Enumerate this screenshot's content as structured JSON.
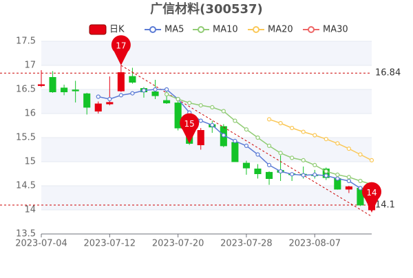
{
  "chart_data": {
    "type": "candlestick",
    "title": "广信材料(300537)",
    "categories": [
      "2023-07-04",
      null,
      null,
      null,
      null,
      null,
      "2023-07-12",
      null,
      null,
      null,
      null,
      null,
      "2023-07-20",
      null,
      null,
      null,
      null,
      null,
      "2023-07-28",
      null,
      null,
      null,
      null,
      null,
      "2023-08-07",
      null,
      null,
      null,
      null,
      null
    ],
    "ohlc": {
      "name": "日K",
      "rise_color": "#e60012",
      "fall_color": "#14c328",
      "open": [
        16.58,
        16.75,
        16.53,
        16.49,
        16.41,
        16.05,
        16.2,
        16.47,
        16.77,
        16.52,
        16.45,
        16.27,
        16.22,
        15.83,
        15.35,
        15.77,
        15.73,
        15.4,
        14.97,
        14.85,
        14.78,
        14.82,
        14.75,
        14.74,
        14.73,
        14.85,
        14.65,
        14.43,
        14.45,
        14.0
      ],
      "close": [
        16.6,
        16.45,
        16.45,
        16.47,
        16.13,
        16.2,
        16.23,
        16.85,
        16.65,
        16.45,
        16.37,
        16.22,
        15.7,
        15.38,
        15.65,
        15.72,
        15.33,
        15.0,
        14.87,
        14.75,
        14.65,
        14.78,
        14.73,
        14.72,
        14.71,
        14.67,
        14.43,
        14.48,
        14.1,
        14.1
      ],
      "low": [
        16.55,
        16.43,
        16.38,
        16.23,
        15.98,
        16.0,
        16.17,
        16.45,
        16.62,
        16.33,
        16.3,
        16.2,
        15.65,
        15.35,
        15.25,
        15.6,
        15.3,
        15.0,
        14.73,
        14.65,
        14.52,
        14.6,
        14.6,
        14.65,
        14.65,
        14.62,
        14.42,
        14.35,
        14.08,
        13.95
      ],
      "high": [
        16.9,
        16.88,
        16.6,
        16.68,
        16.43,
        16.25,
        16.77,
        17.0,
        16.95,
        16.55,
        16.7,
        16.5,
        16.28,
        15.87,
        15.7,
        15.85,
        15.78,
        15.45,
        15.02,
        14.95,
        14.8,
        15.13,
        14.77,
        14.9,
        14.83,
        14.88,
        14.68,
        14.5,
        14.47,
        14.15
      ]
    },
    "series": [
      {
        "name": "MA5",
        "color": "#5b7bd5",
        "values": [
          null,
          null,
          null,
          null,
          null,
          16.35,
          16.3,
          16.38,
          16.42,
          16.48,
          16.5,
          16.5,
          16.3,
          16.02,
          15.85,
          15.76,
          15.55,
          15.43,
          15.33,
          15.15,
          14.93,
          14.8,
          14.74,
          14.72,
          14.73,
          14.71,
          14.65,
          14.6,
          14.45,
          14.3
        ]
      },
      {
        "name": "MA10",
        "color": "#91cc75",
        "values": [
          null,
          null,
          null,
          null,
          null,
          null,
          null,
          null,
          null,
          null,
          null,
          16.4,
          16.3,
          16.22,
          16.17,
          16.13,
          16.05,
          15.85,
          15.67,
          15.5,
          15.33,
          15.18,
          15.08,
          15.03,
          14.93,
          14.8,
          14.73,
          14.68,
          14.6,
          14.53
        ]
      },
      {
        "name": "MA20",
        "color": "#fac858",
        "values": [
          null,
          null,
          null,
          null,
          null,
          null,
          null,
          null,
          null,
          null,
          null,
          null,
          null,
          null,
          null,
          null,
          null,
          null,
          null,
          null,
          15.88,
          15.8,
          15.7,
          15.62,
          15.55,
          15.47,
          15.38,
          15.27,
          15.15,
          15.03
        ]
      },
      {
        "name": "MA30",
        "color": "#ee6666",
        "values": [
          null,
          null,
          null,
          null,
          null,
          null,
          null,
          null,
          null,
          null,
          null,
          null,
          null,
          null,
          null,
          null,
          null,
          null,
          null,
          null,
          null,
          null,
          null,
          null,
          null,
          null,
          null,
          null,
          null,
          null
        ]
      }
    ],
    "hlines": [
      16.84,
      14.1
    ],
    "annotations": [
      {
        "index": 7,
        "value": 17.0,
        "label": "17"
      },
      {
        "index": 13,
        "value": 15.38,
        "label": "15"
      },
      {
        "index": 29,
        "value": 13.95,
        "label": "14"
      }
    ],
    "ylim": [
      13.5,
      17.5
    ],
    "yticks": [
      13.5,
      14,
      14.5,
      15,
      15.5,
      16,
      16.5,
      17,
      17.5
    ],
    "grid": true
  }
}
